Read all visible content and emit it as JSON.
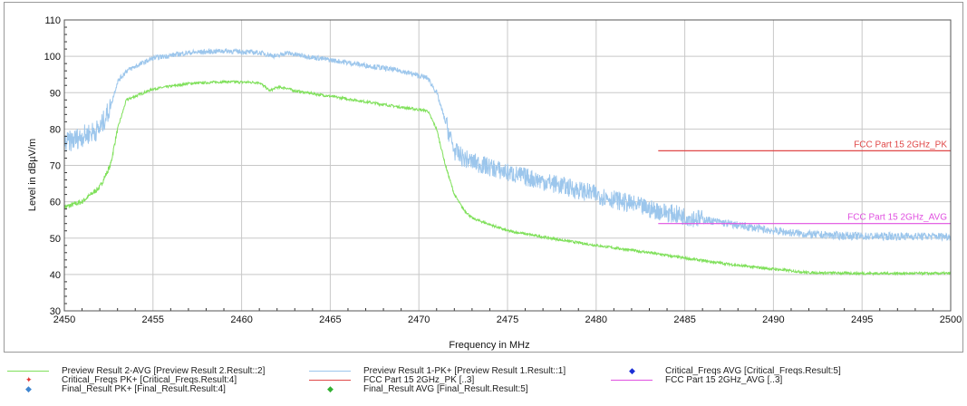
{
  "chart_data": {
    "type": "line",
    "xlabel": "Frequency in MHz",
    "ylabel": "Level in dBµV/m",
    "xlim": [
      2450,
      2500
    ],
    "ylim": [
      30,
      110
    ],
    "x_ticks": [
      2450,
      2455,
      2460,
      2465,
      2470,
      2475,
      2480,
      2485,
      2490,
      2495,
      2500
    ],
    "y_ticks": [
      30,
      40,
      50,
      60,
      70,
      80,
      90,
      100,
      110
    ],
    "x_scale": "linear",
    "grid": true,
    "legend_position": "bottom",
    "series": [
      {
        "name": "Preview Result 2-AVG   [Preview Result 2.Result::2]",
        "color": "#7fe05a",
        "x": [
          2450,
          2451,
          2452,
          2452.6,
          2453,
          2453.5,
          2455,
          2457,
          2459,
          2461,
          2461.6,
          2462,
          2462.5,
          2463,
          2465,
          2467,
          2469,
          2470.5,
          2471,
          2471.5,
          2472,
          2472.5,
          2473,
          2475,
          2478,
          2480,
          2483,
          2485,
          2488,
          2490,
          2492,
          2495,
          2500
        ],
        "y": [
          58.5,
          60,
          64,
          70,
          80,
          88,
          91,
          92.5,
          93,
          92.8,
          90.5,
          91.5,
          91.3,
          90.5,
          89,
          87.5,
          86,
          85,
          80,
          70,
          62,
          58,
          55.5,
          52,
          49.5,
          48,
          46,
          44.5,
          42.5,
          41.5,
          40.5,
          40.3,
          40.3
        ]
      },
      {
        "name": "Preview Result 1-PK+   [Preview Result 1.Result::1]",
        "color": "#9cc6ec",
        "x": [
          2450,
          2451,
          2452,
          2452.6,
          2453,
          2453.5,
          2455,
          2457,
          2459,
          2461,
          2462,
          2462.5,
          2463,
          2465,
          2467,
          2469,
          2470.5,
          2471,
          2471.5,
          2472,
          2472.5,
          2473,
          2475,
          2478,
          2480,
          2483,
          2485,
          2488,
          2490,
          2492,
          2495,
          2500
        ],
        "y": [
          76,
          78,
          80,
          86,
          93,
          96,
          99.5,
          101,
          101.5,
          101,
          100,
          101,
          100.5,
          99,
          97.5,
          96,
          94,
          90,
          82,
          74,
          72,
          71,
          68,
          64.5,
          62,
          58,
          56,
          53.5,
          52,
          51,
          50.5,
          50.5
        ]
      },
      {
        "name": "Critical_Freqs AVG   [Critical_Freqs.Result:5]",
        "color": "#1b2fd6",
        "x": [],
        "y": []
      },
      {
        "name": "Critical_Freqs PK+   [Critical_Freqs.Result:4]",
        "color": "#e03030",
        "x": [],
        "y": []
      },
      {
        "name": "FCC Part 15 2GHz_PK   [..3]",
        "color": "#e04848",
        "x": [
          2483.5,
          2500
        ],
        "y": [
          74,
          74
        ]
      },
      {
        "name": "FCC Part 15 2GHz_AVG   [..3]",
        "color": "#e050e0",
        "x": [
          2483.5,
          2500
        ],
        "y": [
          54,
          54
        ]
      },
      {
        "name": "Final_Result PK+   [Final_Result.Result:4]",
        "color": "#3f86d0",
        "x": [],
        "y": []
      },
      {
        "name": "Final_Result AVG   [Final_Result.Result:5]",
        "color": "#32b032",
        "x": [],
        "y": []
      }
    ],
    "annotations": [
      {
        "text": "FCC Part 15 2GHz_PK",
        "series": "FCC Part 15 2GHz_PK   [..3]"
      },
      {
        "text": "FCC Part 15 2GHz_AVG",
        "series": "FCC Part 15 2GHz_AVG   [..3]"
      }
    ]
  }
}
